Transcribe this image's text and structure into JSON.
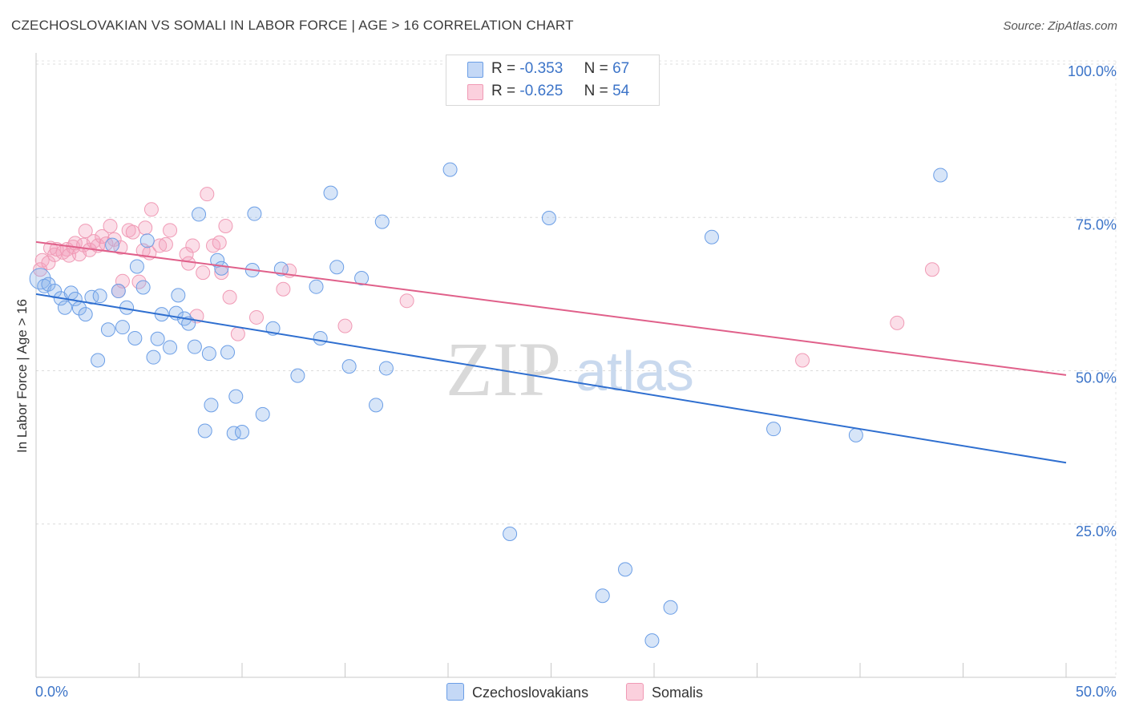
{
  "title": "CZECHOSLOVAKIAN VS SOMALI IN LABOR FORCE | AGE > 16 CORRELATION CHART",
  "source": "Source: ZipAtlas.com",
  "watermark": {
    "zip": "ZIP",
    "atlas": "atlas"
  },
  "legend": {
    "rows": [
      {
        "r_label": "R =",
        "r_value": "-0.353",
        "n_label": "N =",
        "n_value": "67"
      },
      {
        "r_label": "R =",
        "r_value": "-0.625",
        "n_label": "N =",
        "n_value": "54"
      }
    ]
  },
  "bottom_legend": [
    "Czechoslovakians",
    "Somalis"
  ],
  "chart_data": {
    "type": "scatter",
    "title": "CZECHOSLOVAKIAN VS SOMALI IN LABOR FORCE | AGE > 16 CORRELATION CHART",
    "xlabel": "",
    "ylabel": "In Labor Force | Age > 16",
    "xlim": [
      0,
      50
    ],
    "ylim": [
      0,
      100
    ],
    "x_tick_labels": [
      "0.0%",
      "50.0%"
    ],
    "y_tick_labels": [
      "25.0%",
      "50.0%",
      "75.0%",
      "100.0%"
    ],
    "y_tick_values": [
      25,
      50,
      75,
      100
    ],
    "grid": true,
    "legend_position": "top-center",
    "colors": {
      "czech": "#6b9ee6",
      "somali": "#f09ab5",
      "czech_line": "#2f6fd0",
      "somali_line": "#e0608a",
      "tick_label": "#3c74c8"
    },
    "series": [
      {
        "name": "Czechoslovakians",
        "r": -0.353,
        "n": 67,
        "trend": {
          "x": [
            0,
            50
          ],
          "y": [
            62.5,
            35.0
          ]
        },
        "points": [
          [
            0.2,
            65.0
          ],
          [
            0.4,
            63.8
          ],
          [
            0.6,
            64.1
          ],
          [
            0.9,
            63.0
          ],
          [
            1.2,
            61.8
          ],
          [
            1.4,
            60.3
          ],
          [
            1.7,
            62.7
          ],
          [
            1.9,
            61.7
          ],
          [
            2.1,
            60.2
          ],
          [
            2.4,
            59.2
          ],
          [
            2.7,
            62.0
          ],
          [
            3.0,
            51.7
          ],
          [
            3.1,
            62.2
          ],
          [
            3.5,
            56.7
          ],
          [
            3.7,
            70.5
          ],
          [
            4.0,
            63.0
          ],
          [
            4.2,
            57.1
          ],
          [
            4.4,
            60.3
          ],
          [
            4.8,
            55.3
          ],
          [
            4.9,
            67.0
          ],
          [
            5.2,
            63.6
          ],
          [
            5.4,
            71.2
          ],
          [
            5.7,
            52.2
          ],
          [
            5.9,
            55.2
          ],
          [
            6.1,
            59.2
          ],
          [
            6.5,
            53.8
          ],
          [
            6.8,
            59.4
          ],
          [
            6.9,
            62.3
          ],
          [
            7.2,
            58.5
          ],
          [
            7.4,
            57.7
          ],
          [
            7.7,
            53.9
          ],
          [
            7.9,
            75.5
          ],
          [
            8.2,
            40.2
          ],
          [
            8.4,
            52.8
          ],
          [
            8.5,
            44.4
          ],
          [
            8.8,
            68.0
          ],
          [
            9.0,
            66.7
          ],
          [
            9.3,
            53.0
          ],
          [
            9.6,
            39.8
          ],
          [
            9.7,
            45.8
          ],
          [
            10.0,
            40.0
          ],
          [
            10.5,
            66.4
          ],
          [
            10.6,
            75.6
          ],
          [
            11.0,
            42.9
          ],
          [
            11.5,
            56.9
          ],
          [
            11.9,
            66.6
          ],
          [
            12.7,
            49.2
          ],
          [
            13.6,
            63.7
          ],
          [
            13.8,
            55.3
          ],
          [
            14.3,
            79.0
          ],
          [
            14.6,
            66.9
          ],
          [
            15.2,
            50.7
          ],
          [
            15.8,
            65.1
          ],
          [
            16.5,
            44.4
          ],
          [
            16.8,
            74.3
          ],
          [
            17.0,
            50.4
          ],
          [
            20.1,
            82.8
          ],
          [
            23.0,
            23.4
          ],
          [
            24.9,
            74.9
          ],
          [
            27.5,
            13.3
          ],
          [
            28.6,
            17.6
          ],
          [
            29.9,
            6.0
          ],
          [
            30.8,
            11.4
          ],
          [
            32.8,
            71.8
          ],
          [
            35.8,
            40.5
          ],
          [
            39.8,
            39.5
          ],
          [
            43.9,
            81.9
          ]
        ]
      },
      {
        "name": "Somalis",
        "r": -0.625,
        "n": 54,
        "trend": {
          "x": [
            0,
            50
          ],
          "y": [
            71.0,
            49.3
          ]
        },
        "points": [
          [
            0.2,
            66.5
          ],
          [
            0.3,
            68.0
          ],
          [
            0.6,
            67.6
          ],
          [
            0.7,
            70.0
          ],
          [
            0.9,
            68.9
          ],
          [
            1.0,
            69.8
          ],
          [
            1.3,
            69.3
          ],
          [
            1.5,
            69.8
          ],
          [
            1.6,
            68.8
          ],
          [
            1.8,
            70.2
          ],
          [
            1.9,
            70.8
          ],
          [
            2.1,
            69.0
          ],
          [
            2.3,
            70.5
          ],
          [
            2.4,
            72.8
          ],
          [
            2.6,
            69.7
          ],
          [
            2.8,
            71.1
          ],
          [
            3.0,
            70.4
          ],
          [
            3.2,
            71.9
          ],
          [
            3.4,
            70.7
          ],
          [
            3.6,
            73.6
          ],
          [
            3.8,
            71.4
          ],
          [
            4.0,
            63.0
          ],
          [
            4.1,
            70.1
          ],
          [
            4.2,
            64.6
          ],
          [
            4.5,
            72.9
          ],
          [
            4.7,
            72.6
          ],
          [
            5.0,
            64.5
          ],
          [
            5.2,
            69.6
          ],
          [
            5.3,
            73.3
          ],
          [
            5.5,
            69.2
          ],
          [
            5.6,
            76.3
          ],
          [
            6.0,
            70.4
          ],
          [
            6.3,
            70.6
          ],
          [
            6.5,
            72.9
          ],
          [
            7.3,
            69.0
          ],
          [
            7.4,
            67.5
          ],
          [
            7.6,
            70.4
          ],
          [
            7.8,
            58.9
          ],
          [
            8.1,
            66.0
          ],
          [
            8.3,
            78.8
          ],
          [
            8.6,
            70.4
          ],
          [
            8.9,
            70.9
          ],
          [
            9.0,
            66.0
          ],
          [
            9.2,
            73.6
          ],
          [
            9.4,
            62.0
          ],
          [
            9.8,
            56.0
          ],
          [
            10.7,
            58.7
          ],
          [
            12.0,
            63.3
          ],
          [
            12.3,
            66.3
          ],
          [
            15.0,
            57.3
          ],
          [
            18.0,
            61.4
          ],
          [
            37.2,
            51.7
          ],
          [
            41.8,
            57.8
          ],
          [
            43.5,
            66.5
          ]
        ]
      }
    ]
  }
}
